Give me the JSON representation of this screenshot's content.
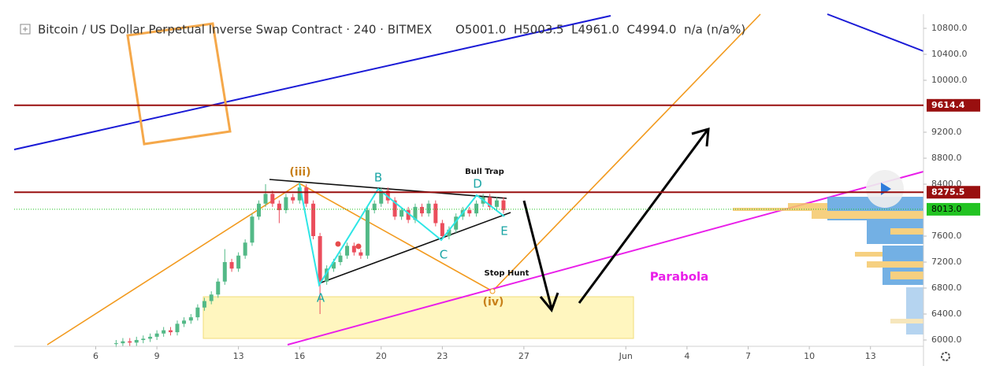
{
  "chart_data": {
    "type": "candlestick",
    "title": "Bitcoin / US Dollar Perpetual Inverse Swap Contract · 240 · BITMEX",
    "ohlc_header": "O5001.0  H5003.5  L4961.0  C4994.0  n/a (n/a%)",
    "up_color": "#53b987",
    "down_color": "#eb4d5c",
    "xlim": [
      2.0,
      46.6
    ],
    "xticks": [
      6,
      9,
      13,
      16,
      20,
      23,
      27,
      {
        "value": 32,
        "label": "Jun"
      },
      {
        "value": 35,
        "label": "4"
      },
      {
        "value": 38,
        "label": "7"
      },
      {
        "value": 41,
        "label": "10"
      },
      {
        "value": 44,
        "label": "13"
      }
    ],
    "ylim": [
      5903,
      11018
    ],
    "yticks": [
      {
        "value": 6000,
        "label": "6000.0"
      },
      {
        "value": 6400,
        "label": "6400.0"
      },
      {
        "value": 6800,
        "label": "6800.0"
      },
      {
        "value": 7200,
        "label": "7200.0"
      },
      {
        "value": 7600,
        "label": "7600.0"
      },
      {
        "value": 8400,
        "label": "8400.0"
      },
      {
        "value": 8800,
        "label": "8800.0"
      },
      {
        "value": 9200,
        "label": "9200.0"
      },
      {
        "value": 10000,
        "label": "10000.0"
      },
      {
        "value": 10400,
        "label": "10400.0"
      },
      {
        "value": 10800,
        "label": "10800.0"
      }
    ],
    "grid": false,
    "levels": [
      {
        "value": 9614.4,
        "label": "9614.4",
        "color": "#990f0f"
      },
      {
        "value": 8275.5,
        "label": "8275.5",
        "color": "#990f0f"
      }
    ],
    "last_price": {
      "value": 8013.0,
      "label": "8013.0",
      "color": "#22c322"
    },
    "annotations": [
      "(iii)",
      "B",
      "Bull Trap",
      "D",
      "E",
      "C",
      "A",
      "Stop Hunt",
      "(iv)",
      "Parabola"
    ],
    "x": [
      7,
      7.33,
      7.67,
      8,
      8.33,
      8.67,
      9,
      9.33,
      9.67,
      10,
      10.33,
      10.67,
      11,
      11.33,
      11.67,
      12,
      12.33,
      12.67,
      13,
      13.33,
      13.67,
      14,
      14.33,
      14.67,
      15,
      15.33,
      15.67,
      16,
      16.33,
      16.67,
      17,
      17.33,
      17.67,
      18,
      18.33,
      18.67,
      19,
      19.33,
      19.67,
      20,
      20.33,
      20.67,
      21,
      21.33,
      21.67,
      22,
      22.33,
      22.67,
      23,
      23.33,
      23.67,
      24,
      24.33,
      24.67,
      25,
      25.33,
      25.67,
      26
    ],
    "open": [
      5940,
      5950,
      5980,
      5960,
      6000,
      6020,
      6050,
      6100,
      6150,
      6120,
      6250,
      6300,
      6350,
      6500,
      6600,
      6700,
      6900,
      7200,
      7100,
      7300,
      7500,
      7900,
      8100,
      8250,
      8100,
      8000,
      8200,
      8150,
      8350,
      8100,
      7600,
      6900,
      7100,
      7200,
      7300,
      7450,
      7350,
      7300,
      8000,
      8100,
      8300,
      8150,
      7900,
      8000,
      7850,
      8050,
      7950,
      8100,
      7800,
      7600,
      7700,
      7900,
      8000,
      7950,
      8100,
      8200,
      8050,
      8150
    ],
    "high": [
      6000,
      6030,
      6030,
      6050,
      6070,
      6100,
      6150,
      6200,
      6200,
      6300,
      6350,
      6400,
      6550,
      6650,
      6750,
      6950,
      7400,
      7250,
      7350,
      7550,
      7950,
      8150,
      8400,
      8300,
      8150,
      8250,
      8250,
      8420,
      8400,
      8150,
      7650,
      7150,
      7250,
      7350,
      7500,
      7500,
      7400,
      8050,
      8150,
      8350,
      8350,
      8200,
      8050,
      8050,
      8100,
      8100,
      8150,
      8150,
      7850,
      7750,
      7950,
      8050,
      8050,
      8150,
      8250,
      8250,
      8200,
      8200
    ],
    "low": [
      5890,
      5900,
      5910,
      5910,
      5950,
      5970,
      6000,
      6050,
      6070,
      6070,
      6200,
      6250,
      6300,
      6450,
      6550,
      6650,
      6850,
      7050,
      7050,
      7250,
      7450,
      7850,
      8050,
      8050,
      7800,
      7950,
      8100,
      8100,
      8050,
      7550,
      6400,
      6850,
      7050,
      7150,
      7250,
      7300,
      7250,
      7250,
      7950,
      8050,
      8100,
      7850,
      7850,
      7800,
      7800,
      7900,
      7900,
      7750,
      7550,
      7550,
      7650,
      7850,
      7900,
      7900,
      8050,
      8000,
      8000,
      7950
    ],
    "close": [
      5950,
      5980,
      5960,
      6000,
      6020,
      6050,
      6100,
      6150,
      6120,
      6250,
      6300,
      6350,
      6500,
      6600,
      6700,
      6900,
      7200,
      7100,
      7300,
      7500,
      7900,
      8100,
      8250,
      8100,
      8000,
      8200,
      8150,
      8350,
      8100,
      7600,
      6900,
      7100,
      7200,
      7300,
      7450,
      7350,
      7300,
      8000,
      8100,
      8300,
      8150,
      7900,
      8000,
      7850,
      8050,
      7950,
      8100,
      7800,
      7600,
      7700,
      7900,
      8000,
      7950,
      8100,
      8200,
      8050,
      8150,
      8000
    ]
  }
}
